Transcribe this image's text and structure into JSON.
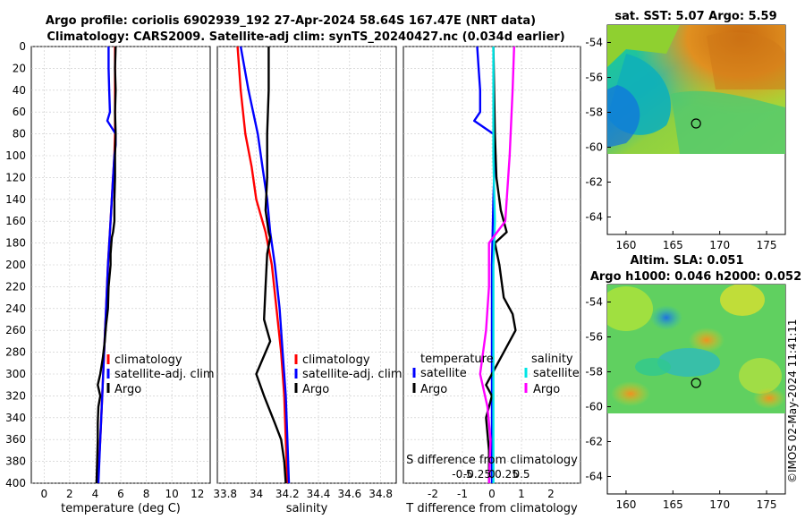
{
  "header": {
    "title_line1": "Argo profile: coriolis 6902939_192 27-Apr-2024 58.64S 167.47E (NRT data)",
    "title_line2": "Climatology: CARS2009. Satellite-adj clim: synTS_20240427.nc (0.034d earlier)"
  },
  "watermark": "©IMOS 02-May-2024 11:41:11",
  "colors": {
    "argo": "#000000",
    "climatology": "#ff0000",
    "satellite": "#0000ff",
    "salinity_satellite": "#00e5e5",
    "salinity_argo": "#ff00ff"
  },
  "chart_data": [
    {
      "type": "line",
      "id": "temperature",
      "xlabel": "temperature (deg C)",
      "xlim": [
        -1,
        13
      ],
      "ylim": [
        0,
        400
      ],
      "x_ticks": [
        0,
        2,
        4,
        6,
        8,
        10,
        12
      ],
      "x_tick_labels": [
        "0",
        "2",
        "4",
        "6",
        "8",
        "10",
        "12"
      ],
      "y_ticks": [
        0,
        20,
        40,
        60,
        80,
        100,
        120,
        140,
        160,
        180,
        200,
        220,
        240,
        260,
        280,
        300,
        320,
        340,
        360,
        380,
        400
      ],
      "y_tick_labels": [
        "0",
        "20",
        "40",
        "60",
        "80",
        "100",
        "120",
        "140",
        "160",
        "180",
        "200",
        "220",
        "240",
        "260",
        "280",
        "300",
        "320",
        "340",
        "360",
        "380",
        "400"
      ],
      "legend": [
        "climatology",
        "satellite-adj. clim",
        "Argo"
      ],
      "series": [
        {
          "name": "climatology",
          "color": "#ff0000",
          "points": [
            [
              5.55,
              0
            ],
            [
              5.55,
              20
            ],
            [
              5.55,
              40
            ],
            [
              5.55,
              60
            ],
            [
              5.55,
              80
            ],
            [
              5.5,
              100
            ],
            [
              5.4,
              120
            ],
            [
              5.3,
              140
            ],
            [
              5.15,
              170
            ],
            [
              5.0,
              200
            ],
            [
              4.85,
              240
            ],
            [
              4.7,
              280
            ],
            [
              4.55,
              320
            ],
            [
              4.4,
              360
            ],
            [
              4.2,
              400
            ]
          ]
        },
        {
          "name": "satellite-adj. clim",
          "color": "#0000ff",
          "points": [
            [
              5.05,
              0
            ],
            [
              5.05,
              20
            ],
            [
              5.1,
              40
            ],
            [
              5.15,
              60
            ],
            [
              4.95,
              68
            ],
            [
              5.6,
              80
            ],
            [
              5.6,
              90
            ],
            [
              5.5,
              100
            ],
            [
              5.4,
              120
            ],
            [
              5.3,
              140
            ],
            [
              5.15,
              170
            ],
            [
              5.0,
              200
            ],
            [
              4.85,
              240
            ],
            [
              4.7,
              280
            ],
            [
              4.55,
              320
            ],
            [
              4.4,
              360
            ],
            [
              4.25,
              400
            ]
          ]
        },
        {
          "name": "Argo",
          "color": "#000000",
          "points": [
            [
              5.6,
              0
            ],
            [
              5.55,
              20
            ],
            [
              5.6,
              40
            ],
            [
              5.55,
              60
            ],
            [
              5.6,
              80
            ],
            [
              5.55,
              100
            ],
            [
              5.55,
              120
            ],
            [
              5.5,
              140
            ],
            [
              5.5,
              160
            ],
            [
              5.4,
              170
            ],
            [
              5.3,
              175
            ],
            [
              5.2,
              190
            ],
            [
              5.2,
              200
            ],
            [
              5.05,
              220
            ],
            [
              5.0,
              240
            ],
            [
              4.85,
              255
            ],
            [
              4.75,
              270
            ],
            [
              4.6,
              285
            ],
            [
              4.4,
              300
            ],
            [
              4.2,
              310
            ],
            [
              4.4,
              320
            ],
            [
              4.25,
              330
            ],
            [
              4.2,
              345
            ],
            [
              4.2,
              360
            ],
            [
              4.15,
              380
            ],
            [
              4.1,
              400
            ]
          ]
        }
      ]
    },
    {
      "type": "line",
      "id": "salinity",
      "xlabel": "salinity",
      "xlim": [
        33.75,
        34.9
      ],
      "ylim": [
        0,
        400
      ],
      "x_ticks": [
        33.8,
        34.0,
        34.2,
        34.4,
        34.6,
        34.8
      ],
      "x_tick_labels": [
        "33.8",
        "34",
        "34.2",
        "34.4",
        "34.6",
        "34.8"
      ],
      "legend": [
        "climatology",
        "satellite-adj. clim",
        "Argo"
      ],
      "series": [
        {
          "name": "climatology",
          "color": "#ff0000",
          "points": [
            [
              33.88,
              0
            ],
            [
              33.9,
              40
            ],
            [
              33.93,
              80
            ],
            [
              33.97,
              110
            ],
            [
              34.0,
              140
            ],
            [
              34.06,
              170
            ],
            [
              34.1,
              200
            ],
            [
              34.13,
              240
            ],
            [
              34.16,
              280
            ],
            [
              34.18,
              320
            ],
            [
              34.19,
              360
            ],
            [
              34.2,
              400
            ]
          ]
        },
        {
          "name": "satellite-adj. clim",
          "color": "#0000ff",
          "points": [
            [
              33.9,
              0
            ],
            [
              33.95,
              40
            ],
            [
              34.01,
              80
            ],
            [
              34.04,
              110
            ],
            [
              34.07,
              140
            ],
            [
              34.09,
              170
            ],
            [
              34.12,
              200
            ],
            [
              34.15,
              240
            ],
            [
              34.17,
              280
            ],
            [
              34.19,
              320
            ],
            [
              34.2,
              360
            ],
            [
              34.21,
              400
            ]
          ]
        },
        {
          "name": "Argo",
          "color": "#000000",
          "points": [
            [
              34.08,
              0
            ],
            [
              34.08,
              40
            ],
            [
              34.07,
              80
            ],
            [
              34.07,
              120
            ],
            [
              34.06,
              150
            ],
            [
              34.08,
              170
            ],
            [
              34.09,
              175
            ],
            [
              34.07,
              190
            ],
            [
              34.06,
              220
            ],
            [
              34.05,
              250
            ],
            [
              34.09,
              270
            ],
            [
              34.0,
              300
            ],
            [
              34.05,
              320
            ],
            [
              34.12,
              345
            ],
            [
              34.16,
              360
            ],
            [
              34.18,
              380
            ],
            [
              34.19,
              400
            ]
          ]
        }
      ]
    },
    {
      "type": "line",
      "id": "differences",
      "xlabel": "T difference from climatology",
      "xlabel_top": "S difference from climatology",
      "xlim": [
        -3,
        3
      ],
      "ylim": [
        0,
        400
      ],
      "x_ticks": [
        -2,
        -1,
        0,
        1,
        2
      ],
      "x_tick_labels": [
        "-2",
        "-1",
        "0",
        "1",
        "2"
      ],
      "top_ticks": [
        -0.5,
        -0.25,
        0,
        0.25,
        0.5
      ],
      "top_tick_labels": [
        "-0.5",
        "-0.25",
        "0",
        "0.25",
        "0.5"
      ],
      "legend_temperature": {
        "heading": "temperature",
        "items": [
          "satellite",
          "Argo"
        ]
      },
      "legend_salinity": {
        "heading": "salinity",
        "items": [
          "satellite",
          "Argo"
        ]
      },
      "series": [
        {
          "name": "T satellite",
          "color": "#0000ff",
          "points": [
            [
              -0.5,
              0
            ],
            [
              -0.45,
              20
            ],
            [
              -0.4,
              40
            ],
            [
              -0.4,
              60
            ],
            [
              -0.6,
              68
            ],
            [
              0.05,
              80
            ],
            [
              0.1,
              100
            ],
            [
              0.05,
              140
            ],
            [
              0,
              200
            ],
            [
              0,
              300
            ],
            [
              0,
              400
            ]
          ]
        },
        {
          "name": "T Argo",
          "color": "#000000",
          "points": [
            [
              0.05,
              0
            ],
            [
              0.1,
              80
            ],
            [
              0.15,
              120
            ],
            [
              0.3,
              150
            ],
            [
              0.5,
              170
            ],
            [
              0.1,
              180
            ],
            [
              0.25,
              200
            ],
            [
              0.4,
              230
            ],
            [
              0.7,
              245
            ],
            [
              0.8,
              260
            ],
            [
              0.3,
              285
            ],
            [
              0.0,
              300
            ],
            [
              -0.2,
              310
            ],
            [
              0.0,
              320
            ],
            [
              -0.2,
              340
            ],
            [
              -0.1,
              370
            ],
            [
              -0.1,
              400
            ]
          ]
        },
        {
          "name": "S satellite",
          "color": "#00e5e5",
          "points": [
            [
              0.05,
              0
            ],
            [
              0.05,
              100
            ],
            [
              0.1,
              160
            ],
            [
              0.05,
              200
            ],
            [
              0.05,
              300
            ],
            [
              0.05,
              400
            ]
          ]
        },
        {
          "name": "S Argo",
          "color": "#ff00ff",
          "points": [
            [
              0.75,
              0
            ],
            [
              0.7,
              40
            ],
            [
              0.6,
              100
            ],
            [
              0.45,
              160
            ],
            [
              -0.1,
              180
            ],
            [
              -0.1,
              220
            ],
            [
              -0.2,
              260
            ],
            [
              -0.4,
              300
            ],
            [
              -0.15,
              330
            ],
            [
              -0.05,
              360
            ],
            [
              -0.1,
              400
            ]
          ]
        }
      ]
    },
    {
      "type": "heatmap",
      "id": "sst_map",
      "title": "sat. SST: 5.07 Argo: 5.59",
      "xlim": [
        158,
        177
      ],
      "ylim": [
        -65,
        -53
      ],
      "x_ticks": [
        160,
        165,
        170,
        175
      ],
      "x_tick_labels": [
        "160",
        "165",
        "170",
        "175"
      ],
      "y_ticks": [
        -54,
        -56,
        -58,
        -60,
        -62,
        -64
      ],
      "y_tick_labels": [
        "-54",
        "-56",
        "-58",
        "-60",
        "-62",
        "-64"
      ],
      "argo_position": {
        "lon": 167.47,
        "lat": -58.64
      }
    },
    {
      "type": "heatmap",
      "id": "sla_map",
      "title_line1": "Altim. SLA: 0.051",
      "title_line2": "Argo h1000: 0.046 h2000: 0.052",
      "xlim": [
        158,
        177
      ],
      "ylim": [
        -65,
        -53
      ],
      "x_ticks": [
        160,
        165,
        170,
        175
      ],
      "x_tick_labels": [
        "160",
        "165",
        "170",
        "175"
      ],
      "y_ticks": [
        -54,
        -56,
        -58,
        -60,
        -62,
        -64
      ],
      "y_tick_labels": [
        "-54",
        "-56",
        "-58",
        "-60",
        "-62",
        "-64"
      ],
      "argo_position": {
        "lon": 167.47,
        "lat": -58.64
      }
    }
  ]
}
